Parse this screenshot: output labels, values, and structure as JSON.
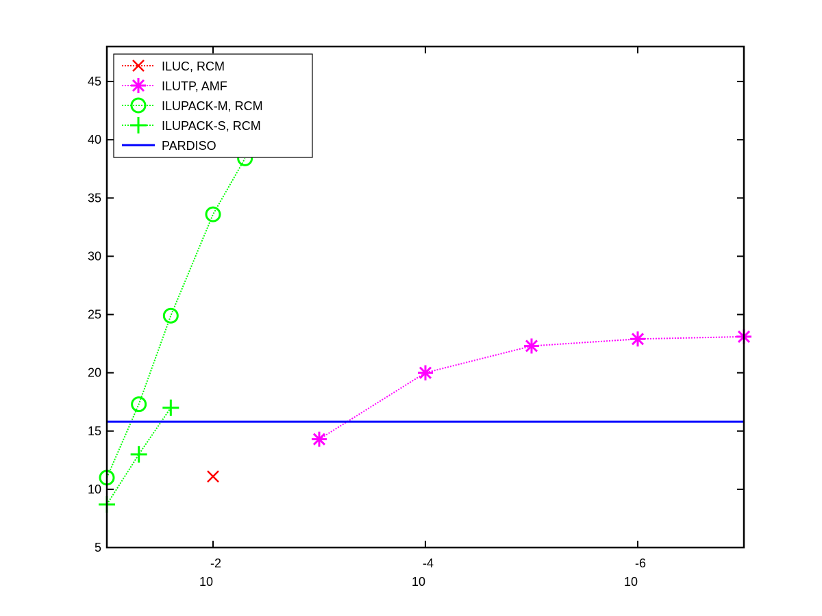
{
  "chart_data": {
    "type": "line",
    "xscale": "log",
    "xlim": [
      0.1,
      1e-07
    ],
    "ylim": [
      5,
      48
    ],
    "grid": false,
    "legend_position": "top-left",
    "x_ticks": [
      {
        "value": 0.01,
        "base": "10",
        "exponent": "-2"
      },
      {
        "value": 0.0001,
        "base": "10",
        "exponent": "-4"
      },
      {
        "value": 1e-06,
        "base": "10",
        "exponent": "-6"
      }
    ],
    "y_ticks": [
      {
        "value": 5,
        "label": "5"
      },
      {
        "value": 10,
        "label": "10"
      },
      {
        "value": 15,
        "label": "15"
      },
      {
        "value": 20,
        "label": "20"
      },
      {
        "value": 25,
        "label": "25"
      },
      {
        "value": 30,
        "label": "30"
      },
      {
        "value": 35,
        "label": "35"
      },
      {
        "value": 40,
        "label": "40"
      },
      {
        "value": 45,
        "label": "45"
      }
    ],
    "series": [
      {
        "name": "ILUC, RCM",
        "color": "#ff0000",
        "marker": "x",
        "line": "dotted",
        "x": [
          0.01
        ],
        "y": [
          11.1
        ]
      },
      {
        "name": "ILUTP, AMF",
        "color": "#ff00ff",
        "marker": "asterisk",
        "line": "dotted",
        "x": [
          0.001,
          0.0001,
          1e-05,
          1e-06,
          1e-07
        ],
        "y": [
          14.3,
          20.0,
          22.3,
          22.9,
          23.1
        ]
      },
      {
        "name": "ILUPACK-M, RCM",
        "color": "#00ff00",
        "marker": "circle",
        "line": "dotted",
        "x": [
          0.1,
          0.05,
          0.025,
          0.01,
          0.005
        ],
        "y": [
          11.0,
          17.3,
          24.9,
          33.6,
          38.4
        ]
      },
      {
        "name": "ILUPACK-S, RCM",
        "color": "#00ff00",
        "marker": "plus",
        "line": "dotted",
        "x": [
          0.1,
          0.05,
          0.025
        ],
        "y": [
          8.7,
          13.0,
          17.0
        ]
      },
      {
        "name": "PARDISO",
        "color": "#0000ff",
        "marker": "none",
        "line": "solid",
        "x": [
          0.1,
          1e-07
        ],
        "y": [
          15.8,
          15.8
        ]
      }
    ]
  }
}
